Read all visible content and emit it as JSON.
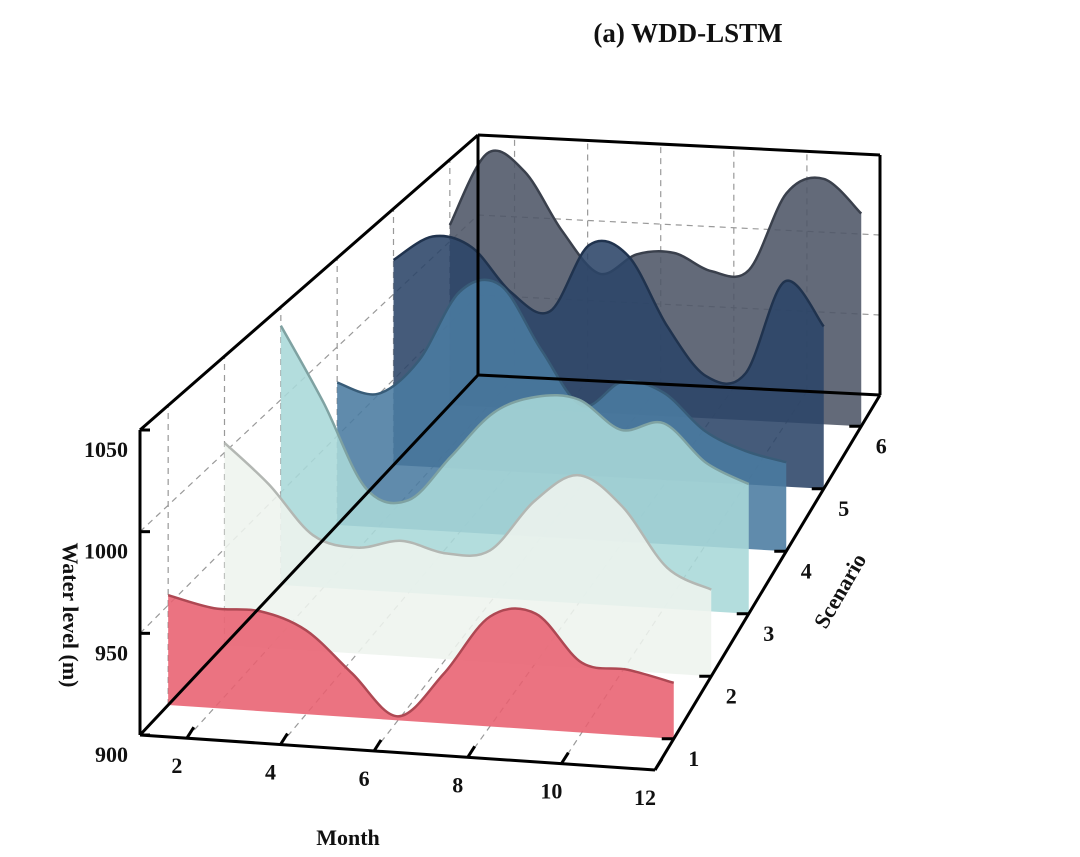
{
  "chart_data": {
    "type": "ridge3d",
    "title": "(a) WDD-LSTM",
    "x_label": "Month",
    "y_label": "Scenario",
    "z_label": "Water level (m)",
    "x": [
      1,
      2,
      3,
      4,
      5,
      6,
      7,
      8,
      9,
      10,
      11,
      12
    ],
    "xlim": [
      1,
      12
    ],
    "xticks": [
      2,
      4,
      6,
      8,
      10,
      12
    ],
    "ylim": [
      0.5,
      6.5
    ],
    "yticks": [
      1,
      2,
      3,
      4,
      5,
      6
    ],
    "zlim": [
      900,
      1050
    ],
    "zticks": [
      900,
      950,
      1000,
      1050
    ],
    "grid": true,
    "series": [
      {
        "y": 1,
        "color": "#e8606f",
        "values": [
          955,
          950,
          950,
          942,
          922,
          902,
          925,
          955,
          958,
          935,
          933,
          928
        ]
      },
      {
        "y": 2,
        "color": "#eef4ee",
        "values": [
          1005,
          985,
          960,
          955,
          960,
          955,
          958,
          985,
          1000,
          985,
          955,
          945
        ]
      },
      {
        "y": 3,
        "color": "#a9d8d8",
        "values": [
          1040,
          1000,
          955,
          950,
          975,
          1000,
          1010,
          1010,
          995,
          1000,
          980,
          970
        ]
      },
      {
        "y": 4,
        "color": "#4a7ba0",
        "values": [
          980,
          975,
          995,
          1035,
          1040,
          1005,
          975,
          990,
          985,
          965,
          955,
          950
        ]
      },
      {
        "y": 5,
        "color": "#2b4468",
        "values": [
          1020,
          1035,
          1030,
          1005,
          995,
          1035,
          1030,
          990,
          962,
          965,
          1020,
          995
        ]
      },
      {
        "y": 6,
        "color": "#4d5566",
        "values": [
          1010,
          1055,
          1045,
          1010,
          985,
          998,
          1000,
          990,
          992,
          1040,
          1050,
          1030
        ]
      }
    ]
  }
}
